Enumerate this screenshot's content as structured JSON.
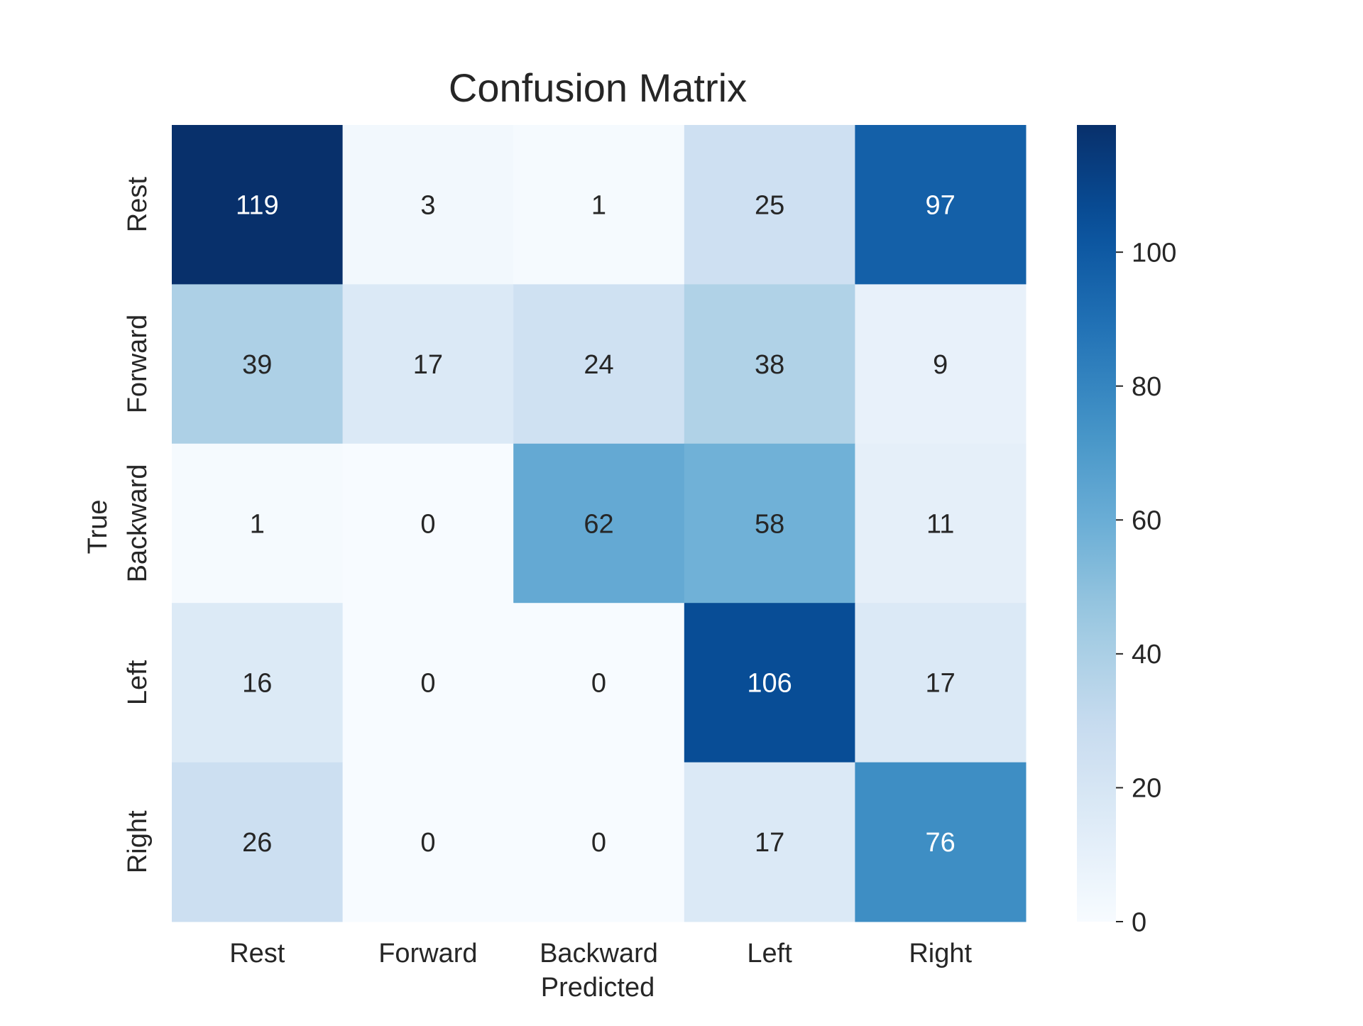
{
  "chart_data": {
    "type": "heatmap",
    "title": "Confusion Matrix",
    "xlabel": "Predicted",
    "ylabel": "True",
    "x_categories": [
      "Rest",
      "Forward",
      "Backward",
      "Left",
      "Right"
    ],
    "y_categories": [
      "Rest",
      "Forward",
      "Backward",
      "Left",
      "Right"
    ],
    "values": [
      [
        119,
        3,
        1,
        25,
        97
      ],
      [
        39,
        17,
        24,
        38,
        9
      ],
      [
        1,
        0,
        62,
        58,
        11
      ],
      [
        16,
        0,
        0,
        106,
        17
      ],
      [
        26,
        0,
        0,
        17,
        76
      ]
    ],
    "colormap": "Blues",
    "color_range": [
      0,
      119
    ],
    "colorbar_ticks": [
      0,
      20,
      40,
      60,
      80,
      100
    ],
    "annotations": true
  }
}
